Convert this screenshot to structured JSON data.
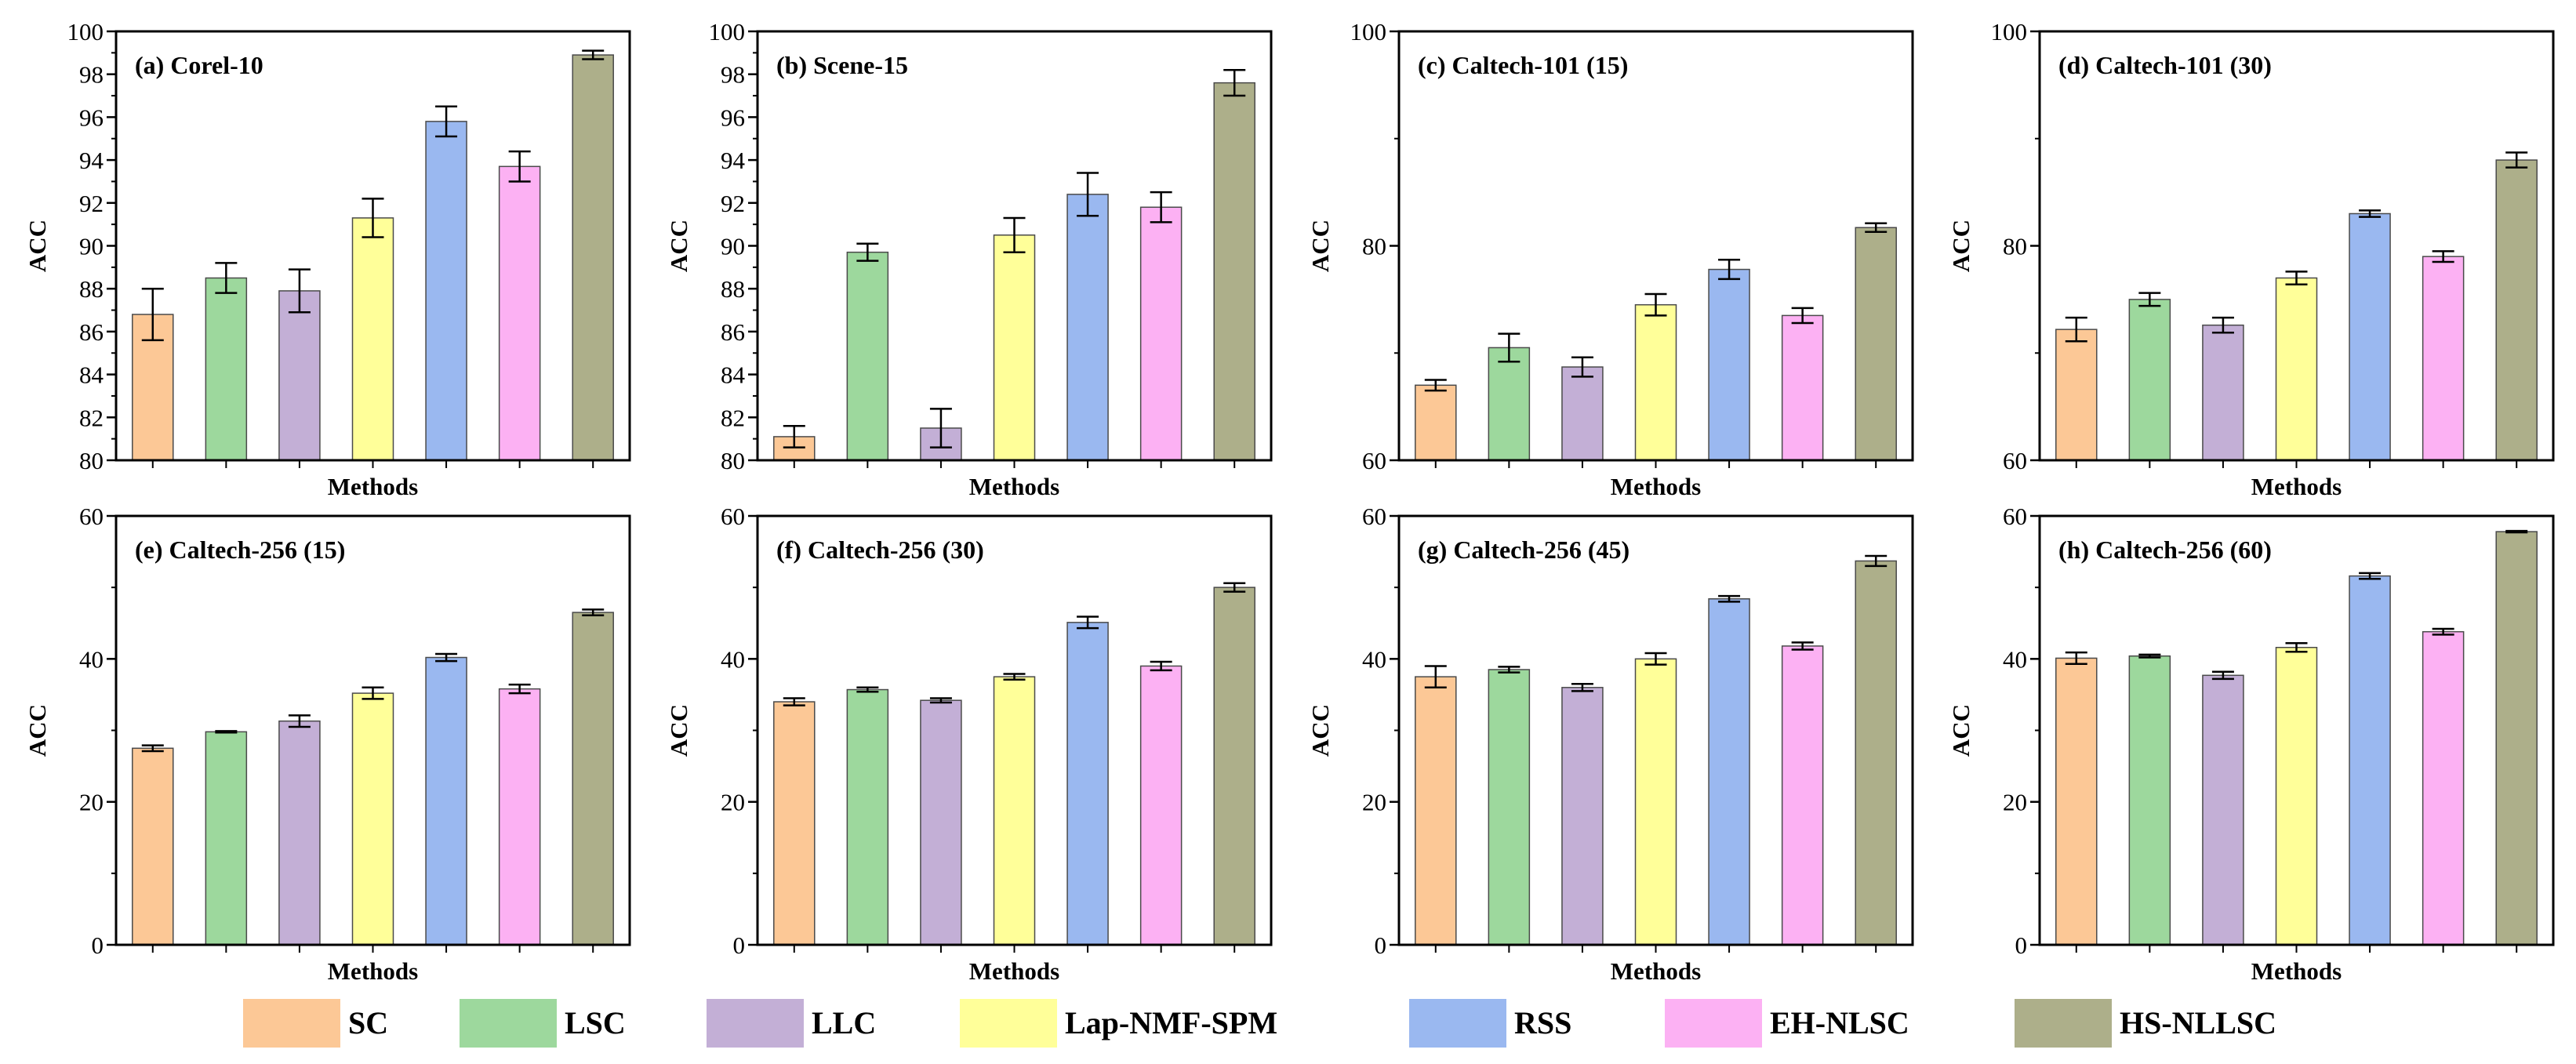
{
  "legend": {
    "items": [
      {
        "label": "SC",
        "color": "#FCC896"
      },
      {
        "label": "LSC",
        "color": "#9DD89D"
      },
      {
        "label": "LLC",
        "color": "#C3AFD6"
      },
      {
        "label": "Lap-NMF-SPM",
        "color": "#FFFF99"
      },
      {
        "label": "RSS",
        "color": "#9AB8F0"
      },
      {
        "label": "EH-NLSC",
        "color": "#FCB1F3"
      },
      {
        "label": "HS-NLLSC",
        "color": "#ADAF8A"
      }
    ]
  },
  "chart_data": [
    {
      "type": "bar",
      "title": "(a) Corel-10",
      "xlabel": "Methods",
      "ylabel": "ACC",
      "categories": [
        "SC",
        "LSC",
        "LLC",
        "Lap-NMF-SPM",
        "RSS",
        "EH-NLSC",
        "HS-NLLSC"
      ],
      "values": [
        86.8,
        88.5,
        87.9,
        91.3,
        95.8,
        93.7,
        98.9
      ],
      "errors": [
        1.2,
        0.7,
        1.0,
        0.9,
        0.7,
        0.7,
        0.2
      ],
      "ylim": [
        80,
        100
      ],
      "yticks": [
        "80",
        "82",
        "84",
        "86",
        "88",
        "90",
        "92",
        "94",
        "96",
        "98",
        "100"
      ]
    },
    {
      "type": "bar",
      "title": "(b) Scene-15",
      "xlabel": "Methods",
      "ylabel": "ACC",
      "categories": [
        "SC",
        "LSC",
        "LLC",
        "Lap-NMF-SPM",
        "RSS",
        "EH-NLSC",
        "HS-NLLSC"
      ],
      "values": [
        81.1,
        89.7,
        81.5,
        90.5,
        92.4,
        91.8,
        97.6
      ],
      "errors": [
        0.5,
        0.4,
        0.9,
        0.8,
        1.0,
        0.7,
        0.6
      ],
      "ylim": [
        80,
        100
      ],
      "yticks": [
        "80",
        "82",
        "84",
        "86",
        "88",
        "90",
        "92",
        "94",
        "96",
        "98",
        "100"
      ]
    },
    {
      "type": "bar",
      "title": "(c) Caltech-101 (15)",
      "xlabel": "Methods",
      "ylabel": "ACC",
      "categories": [
        "SC",
        "LSC",
        "LLC",
        "Lap-NMF-SPM",
        "RSS",
        "EH-NLSC",
        "HS-NLLSC"
      ],
      "values": [
        67.0,
        70.5,
        68.7,
        74.5,
        77.8,
        73.5,
        81.7
      ],
      "errors": [
        0.5,
        1.3,
        0.9,
        1.0,
        0.9,
        0.7,
        0.4
      ],
      "ylim": [
        60,
        100
      ],
      "yticks": [
        "60",
        "80",
        "100"
      ]
    },
    {
      "type": "bar",
      "title": "(d) Caltech-101 (30)",
      "xlabel": "Methods",
      "ylabel": "ACC",
      "categories": [
        "SC",
        "LSC",
        "LLC",
        "Lap-NMF-SPM",
        "RSS",
        "EH-NLSC",
        "HS-NLLSC"
      ],
      "values": [
        72.2,
        75.0,
        72.6,
        77.0,
        83.0,
        79.0,
        88.0
      ],
      "errors": [
        1.1,
        0.6,
        0.7,
        0.6,
        0.3,
        0.5,
        0.7
      ],
      "ylim": [
        60,
        100
      ],
      "yticks": [
        "60",
        "80",
        "100"
      ]
    },
    {
      "type": "bar",
      "title": "(e) Caltech-256 (15)",
      "xlabel": "Methods",
      "ylabel": "ACC",
      "categories": [
        "SC",
        "LSC",
        "LLC",
        "Lap-NMF-SPM",
        "RSS",
        "EH-NLSC",
        "HS-NLLSC"
      ],
      "values": [
        27.5,
        29.8,
        31.3,
        35.2,
        40.2,
        35.8,
        46.5
      ],
      "errors": [
        0.4,
        0.1,
        0.8,
        0.8,
        0.5,
        0.6,
        0.4
      ],
      "ylim": [
        0,
        60
      ],
      "yticks": [
        "0",
        "20",
        "40",
        "60"
      ]
    },
    {
      "type": "bar",
      "title": "(f) Caltech-256 (30)",
      "xlabel": "Methods",
      "ylabel": "ACC",
      "categories": [
        "SC",
        "LSC",
        "LLC",
        "Lap-NMF-SPM",
        "RSS",
        "EH-NLSC",
        "HS-NLLSC"
      ],
      "values": [
        34.0,
        35.7,
        34.2,
        37.5,
        45.1,
        39.0,
        50.0
      ],
      "errors": [
        0.5,
        0.3,
        0.3,
        0.4,
        0.8,
        0.6,
        0.6
      ],
      "ylim": [
        0,
        60
      ],
      "yticks": [
        "0",
        "20",
        "40",
        "60"
      ]
    },
    {
      "type": "bar",
      "title": "(g) Caltech-256 (45)",
      "xlabel": "Methods",
      "ylabel": "ACC",
      "categories": [
        "SC",
        "LSC",
        "LLC",
        "Lap-NMF-SPM",
        "RSS",
        "EH-NLSC",
        "HS-NLLSC"
      ],
      "values": [
        37.5,
        38.5,
        36.0,
        40.0,
        48.4,
        41.8,
        53.7
      ],
      "errors": [
        1.5,
        0.4,
        0.5,
        0.8,
        0.4,
        0.5,
        0.7
      ],
      "ylim": [
        0,
        60
      ],
      "yticks": [
        "0",
        "20",
        "40",
        "60"
      ]
    },
    {
      "type": "bar",
      "title": "(h) Caltech-256 (60)",
      "xlabel": "Methods",
      "ylabel": "ACC",
      "categories": [
        "SC",
        "LSC",
        "LLC",
        "Lap-NMF-SPM",
        "RSS",
        "EH-NLSC",
        "HS-NLLSC"
      ],
      "values": [
        40.1,
        40.4,
        37.7,
        41.6,
        51.6,
        43.8,
        57.8
      ],
      "errors": [
        0.8,
        0.2,
        0.5,
        0.6,
        0.4,
        0.4,
        0.1
      ],
      "ylim": [
        0,
        60
      ],
      "yticks": [
        "0",
        "20",
        "40",
        "60"
      ]
    }
  ]
}
